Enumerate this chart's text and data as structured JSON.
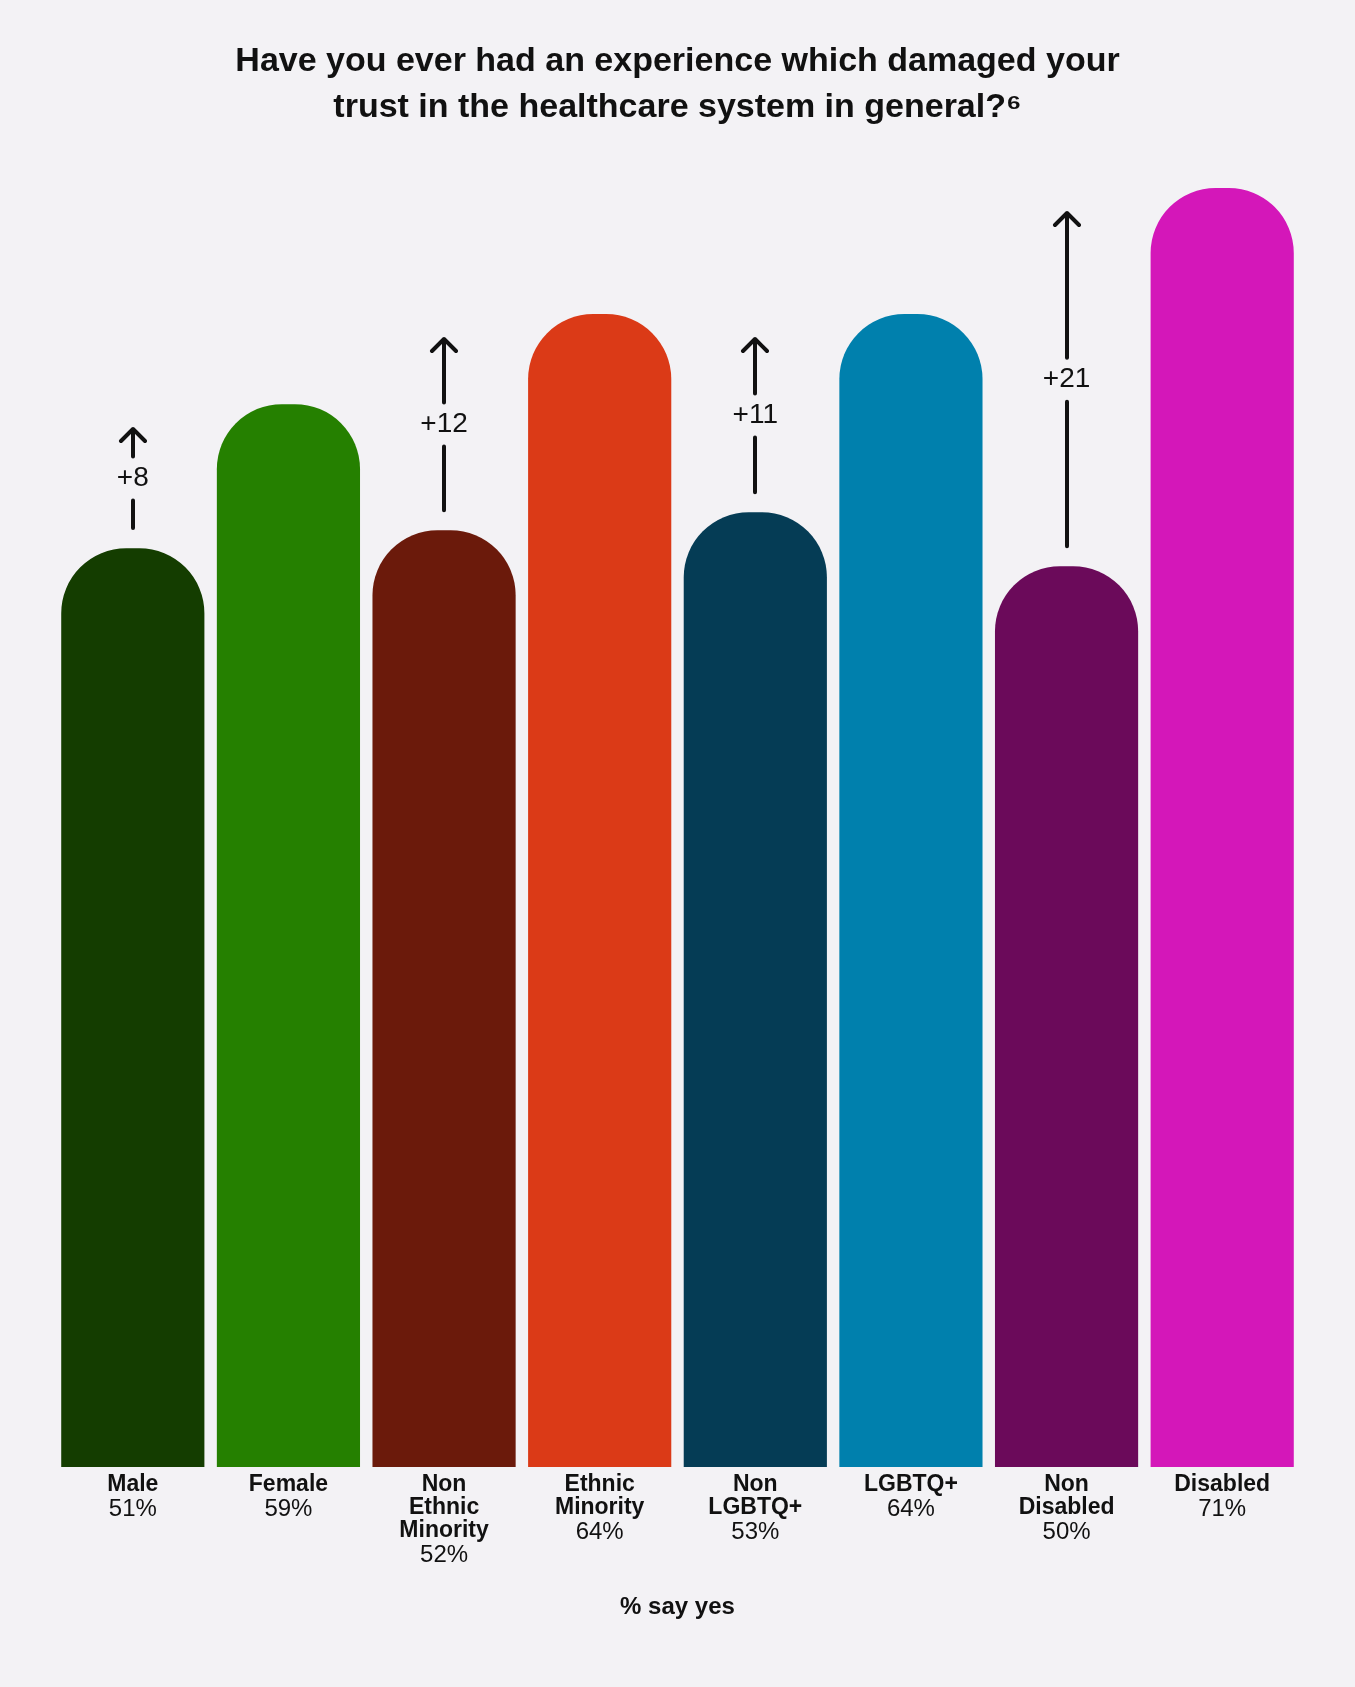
{
  "chart_data": {
    "type": "bar",
    "title": "Have you ever had an experience which damaged your trust in the healthcare system in general?⁶",
    "categories": [
      "Male",
      "Female",
      "Non Ethnic Minority",
      "Ethnic Minority",
      "Non LGBTQ+",
      "LGBTQ+",
      "Non Disabled",
      "Disabled"
    ],
    "values": [
      51,
      59,
      52,
      64,
      53,
      64,
      50,
      71
    ],
    "colors": [
      "#143d00",
      "#258000",
      "#6b1a0b",
      "#db3a17",
      "#053c55",
      "#0080ad",
      "#6b0a5a",
      "#d417b9"
    ],
    "value_labels": [
      "51%",
      "59%",
      "52%",
      "64%",
      "53%",
      "64%",
      "50%",
      "71%"
    ],
    "xlabel": "% say yes",
    "annotations": [
      "+8",
      "+12",
      "+11",
      "+21"
    ]
  }
}
